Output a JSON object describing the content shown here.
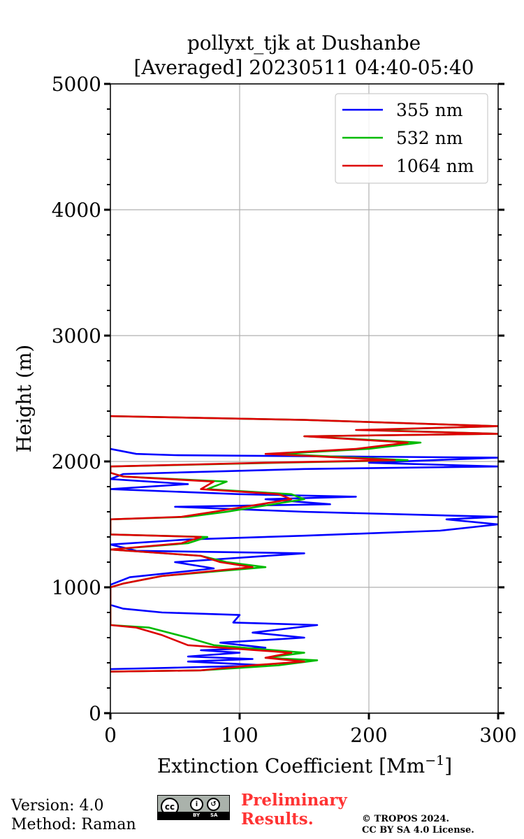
{
  "chart_data": {
    "type": "line",
    "orientation": "vertical-profile",
    "title_line1": "pollyxt_tjk at Dushanbe",
    "title_line2": "[Averaged] 20230511 04:40-05:40",
    "xlabel": "Extinction Coefficient [Mm",
    "xlabel_sup": "−1",
    "xlabel_close": "]",
    "ylabel": "Height (m)",
    "xlim": [
      0,
      300
    ],
    "ylim": [
      0,
      5000
    ],
    "xticks": [
      0,
      100,
      200,
      300
    ],
    "xtick_labels": [
      "0",
      "100",
      "200",
      "300"
    ],
    "yticks": [
      0,
      1000,
      2000,
      3000,
      4000,
      5000
    ],
    "ytick_labels": [
      "0",
      "1000",
      "2000",
      "3000",
      "4000",
      "5000"
    ],
    "grid": true,
    "legend_position": "top-right",
    "series": [
      {
        "name": "355 nm",
        "color": "#0000ff",
        "points": [
          [
            0,
            350
          ],
          [
            45,
            360
          ],
          [
            120,
            380
          ],
          [
            60,
            410
          ],
          [
            110,
            430
          ],
          [
            60,
            450
          ],
          [
            100,
            480
          ],
          [
            70,
            500
          ],
          [
            120,
            520
          ],
          [
            85,
            560
          ],
          [
            150,
            600
          ],
          [
            110,
            640
          ],
          [
            160,
            700
          ],
          [
            95,
            720
          ],
          [
            100,
            780
          ],
          [
            40,
            800
          ],
          [
            10,
            830
          ],
          [
            0,
            860
          ],
          [
            0,
            1020
          ],
          [
            15,
            1080
          ],
          [
            80,
            1150
          ],
          [
            50,
            1200
          ],
          [
            150,
            1270
          ],
          [
            20,
            1290
          ],
          [
            0,
            1340
          ],
          [
            60,
            1380
          ],
          [
            150,
            1410
          ],
          [
            255,
            1450
          ],
          [
            300,
            1500
          ],
          [
            260,
            1540
          ],
          [
            300,
            1560
          ],
          [
            150,
            1600
          ],
          [
            50,
            1640
          ],
          [
            170,
            1660
          ],
          [
            120,
            1700
          ],
          [
            190,
            1720
          ],
          [
            100,
            1740
          ],
          [
            0,
            1780
          ],
          [
            60,
            1820
          ],
          [
            0,
            1860
          ],
          [
            10,
            1900
          ],
          [
            150,
            1940
          ],
          [
            300,
            1960
          ],
          [
            200,
            1990
          ],
          [
            300,
            2030
          ],
          [
            50,
            2050
          ],
          [
            20,
            2060
          ],
          [
            0,
            2100
          ]
        ]
      },
      {
        "name": "532 nm",
        "color": "#00bb00",
        "points": [
          [
            0,
            330
          ],
          [
            70,
            340
          ],
          [
            130,
            380
          ],
          [
            160,
            420
          ],
          [
            120,
            440
          ],
          [
            150,
            480
          ],
          [
            80,
            540
          ],
          [
            60,
            600
          ],
          [
            30,
            680
          ],
          [
            0,
            700
          ],
          [
            0,
            1000
          ],
          [
            10,
            1030
          ],
          [
            40,
            1090
          ],
          [
            120,
            1160
          ],
          [
            90,
            1200
          ],
          [
            70,
            1250
          ],
          [
            0,
            1300
          ],
          [
            60,
            1350
          ],
          [
            75,
            1400
          ],
          [
            0,
            1420
          ],
          [
            0,
            1540
          ],
          [
            60,
            1560
          ],
          [
            90,
            1600
          ],
          [
            120,
            1650
          ],
          [
            150,
            1700
          ],
          [
            140,
            1740
          ],
          [
            75,
            1780
          ],
          [
            90,
            1840
          ],
          [
            10,
            1880
          ],
          [
            0,
            1910
          ],
          [
            0,
            1960
          ],
          [
            130,
            1990
          ],
          [
            230,
            2010
          ],
          [
            130,
            2060
          ],
          [
            200,
            2100
          ],
          [
            240,
            2150
          ],
          [
            150,
            2200
          ],
          [
            300,
            2220
          ],
          [
            200,
            2250
          ],
          [
            300,
            2280
          ],
          [
            150,
            2330
          ],
          [
            0,
            2360
          ]
        ]
      },
      {
        "name": "1064 nm",
        "color": "#dd0000",
        "points": [
          [
            0,
            330
          ],
          [
            70,
            340
          ],
          [
            110,
            380
          ],
          [
            150,
            410
          ],
          [
            120,
            440
          ],
          [
            140,
            480
          ],
          [
            60,
            540
          ],
          [
            40,
            620
          ],
          [
            20,
            680
          ],
          [
            0,
            700
          ],
          [
            0,
            1000
          ],
          [
            10,
            1030
          ],
          [
            40,
            1090
          ],
          [
            110,
            1160
          ],
          [
            85,
            1200
          ],
          [
            70,
            1250
          ],
          [
            0,
            1300
          ],
          [
            55,
            1350
          ],
          [
            70,
            1400
          ],
          [
            0,
            1420
          ],
          [
            0,
            1540
          ],
          [
            55,
            1560
          ],
          [
            80,
            1600
          ],
          [
            110,
            1650
          ],
          [
            140,
            1700
          ],
          [
            130,
            1740
          ],
          [
            70,
            1780
          ],
          [
            80,
            1840
          ],
          [
            10,
            1880
          ],
          [
            0,
            1910
          ],
          [
            0,
            1960
          ],
          [
            120,
            1990
          ],
          [
            220,
            2010
          ],
          [
            120,
            2060
          ],
          [
            190,
            2100
          ],
          [
            230,
            2150
          ],
          [
            150,
            2200
          ],
          [
            300,
            2220
          ],
          [
            190,
            2250
          ],
          [
            300,
            2280
          ],
          [
            150,
            2330
          ],
          [
            0,
            2360
          ]
        ]
      }
    ]
  },
  "footer": {
    "version": "Version: 4.0",
    "method": "Method: Raman",
    "preliminary_line1": "Preliminary",
    "preliminary_line2": "Results.",
    "copyright_line1": "© TROPOS 2024.",
    "copyright_line2": "CC BY SA 4.0 License.",
    "license_badge": {
      "cc": "cc",
      "by": "BY",
      "sa": "SA"
    }
  }
}
